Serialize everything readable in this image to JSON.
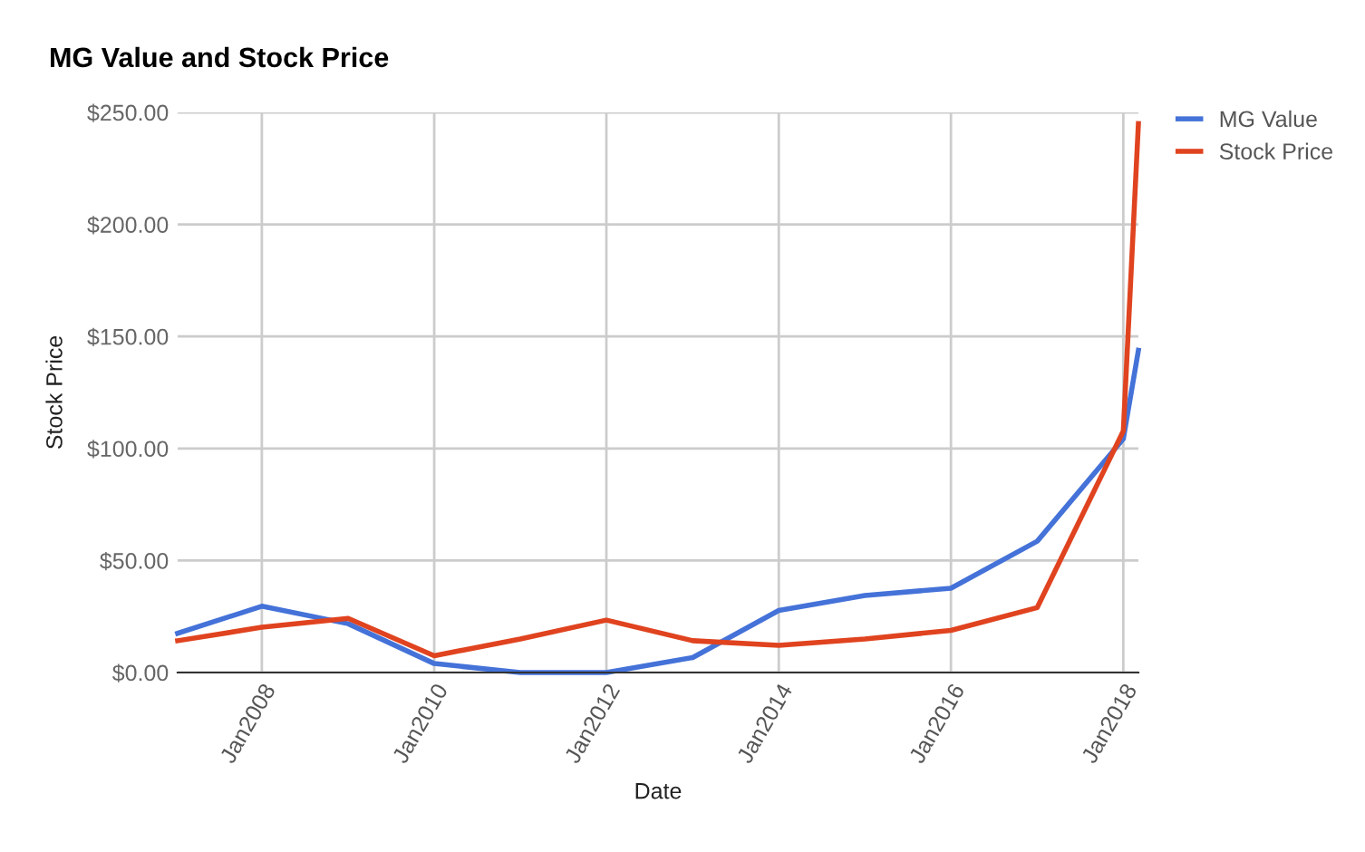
{
  "chart_data": {
    "type": "line",
    "title": "MG Value and Stock Price",
    "xlabel": "Date",
    "ylabel": "Stock Price",
    "x": [
      "2007-01-09",
      "2008-01-01",
      "2009-01-01",
      "2010-01-01",
      "2011-01-01",
      "2012-01-01",
      "2013-01-01",
      "2014-01-01",
      "2015-01-01",
      "2016-01-01",
      "2017-01-01",
      "2018-01-01",
      "2018-03-06"
    ],
    "series": [
      {
        "name": "MG Value",
        "color": "#4472d8",
        "values": [
          17.5,
          29.6,
          21.8,
          4,
          0,
          0,
          6.7,
          27.7,
          34.4,
          37.6,
          58.6,
          104.3,
          143.8
        ]
      },
      {
        "name": "Stock Price",
        "color": "#e0431f",
        "values": [
          14.2,
          20.2,
          24.2,
          7.5,
          15,
          23.4,
          14.2,
          12.1,
          15,
          18.8,
          29,
          107.8,
          245
        ]
      }
    ],
    "xlim": [
      "2007-01-09",
      "2018-03-06"
    ],
    "xticks": [
      {
        "value": "2008-01-01",
        "label": "Jan2008"
      },
      {
        "value": "2010-01-01",
        "label": "Jan2010"
      },
      {
        "value": "2012-01-01",
        "label": "Jan2012"
      },
      {
        "value": "2014-01-01",
        "label": "Jan2014"
      },
      {
        "value": "2016-01-01",
        "label": "Jan2016"
      },
      {
        "value": "2018-01-01",
        "label": "Jan2018"
      }
    ],
    "ylim": [
      0,
      250
    ],
    "yticks": [
      {
        "value": 0,
        "label": "$0.00"
      },
      {
        "value": 50,
        "label": "$50.00"
      },
      {
        "value": 100,
        "label": "$100.00"
      },
      {
        "value": 150,
        "label": "$150.00"
      },
      {
        "value": 200,
        "label": "$200.00"
      },
      {
        "value": 250,
        "label": "$250.00"
      }
    ],
    "grid": true,
    "legend": "top right",
    "marker": "none",
    "line_style": "solid"
  }
}
